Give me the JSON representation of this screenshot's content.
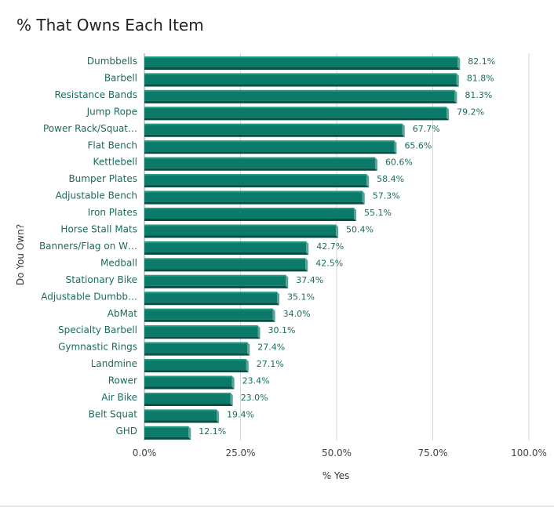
{
  "chart_data": {
    "type": "bar",
    "orientation": "horizontal",
    "title": "% That Owns Each Item",
    "xlabel": "% Yes",
    "ylabel": "Do You Own?",
    "xlim": [
      0,
      100
    ],
    "x_ticks": [
      "0.0%",
      "25.0%",
      "50.0%",
      "75.0%",
      "100.0%"
    ],
    "grid": true,
    "bar_color": "#0b7a68",
    "categories": [
      "Dumbbells",
      "Barbell",
      "Resistance Bands",
      "Jump Rope",
      "Power Rack/Squat…",
      "Flat Bench",
      "Kettlebell",
      "Bumper Plates",
      "Adjustable Bench",
      "Iron Plates",
      "Horse Stall Mats",
      "Banners/Flag on W…",
      "Medball",
      "Stationary Bike",
      "Adjustable Dumbb…",
      "AbMat",
      "Specialty Barbell",
      "Gymnastic Rings",
      "Landmine",
      "Rower",
      "Air Bike",
      "Belt Squat",
      "GHD"
    ],
    "values": [
      82.1,
      81.8,
      81.3,
      79.2,
      67.7,
      65.6,
      60.6,
      58.4,
      57.3,
      55.1,
      50.4,
      42.7,
      42.5,
      37.4,
      35.1,
      34.0,
      30.1,
      27.4,
      27.1,
      23.4,
      23.0,
      19.4,
      12.1
    ],
    "value_labels": [
      "82.1%",
      "81.8%",
      "81.3%",
      "79.2%",
      "67.7%",
      "65.6%",
      "60.6%",
      "58.4%",
      "57.3%",
      "55.1%",
      "50.4%",
      "42.7%",
      "42.5%",
      "37.4%",
      "35.1%",
      "34.0%",
      "30.1%",
      "27.4%",
      "27.1%",
      "23.4%",
      "23.0%",
      "19.4%",
      "12.1%"
    ]
  }
}
